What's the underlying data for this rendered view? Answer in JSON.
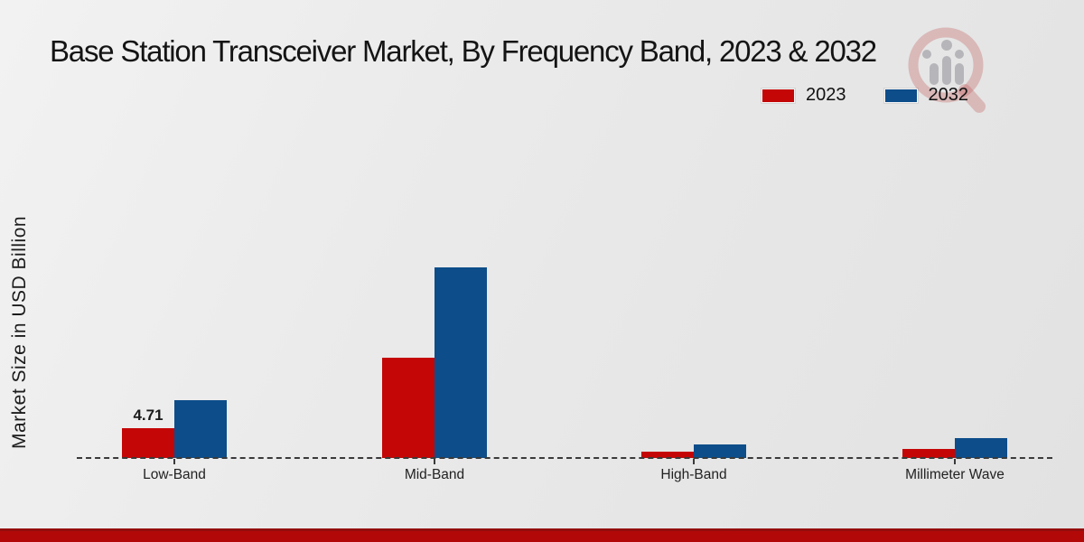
{
  "title": "Base Station Transceiver Market, By Frequency Band, 2023 & 2032",
  "ylabel": "Market Size in USD Billion",
  "legend": [
    {
      "label": "2023",
      "color": "#c40606"
    },
    {
      "label": "2032",
      "color": "#0d4d8a"
    }
  ],
  "watermark_icon": "magnifier-barchart-logo",
  "colors": {
    "series_2023": "#c40606",
    "series_2032": "#0d4d8a",
    "axis_dash": "#3a3a3a",
    "footer_accent": "#b30808"
  },
  "chart_data": {
    "type": "bar",
    "title": "Base Station Transceiver Market, By Frequency Band, 2023 & 2032",
    "xlabel": "",
    "ylabel": "Market Size in USD Billion",
    "categories": [
      "Low-Band",
      "Mid-Band",
      "High-Band",
      "Millimeter Wave"
    ],
    "series": [
      {
        "name": "2023",
        "color": "#c40606",
        "values": [
          4.71,
          15.8,
          1.0,
          1.4
        ]
      },
      {
        "name": "2032",
        "color": "#0d4d8a",
        "values": [
          9.2,
          30.1,
          2.1,
          3.2
        ]
      }
    ],
    "annotations": [
      {
        "category": "Low-Band",
        "series": "2023",
        "text": "4.71"
      }
    ],
    "ylim": [
      0,
      32
    ],
    "grid": false,
    "axis_style": "dashed-baseline-only",
    "legend_position": "top-right"
  }
}
